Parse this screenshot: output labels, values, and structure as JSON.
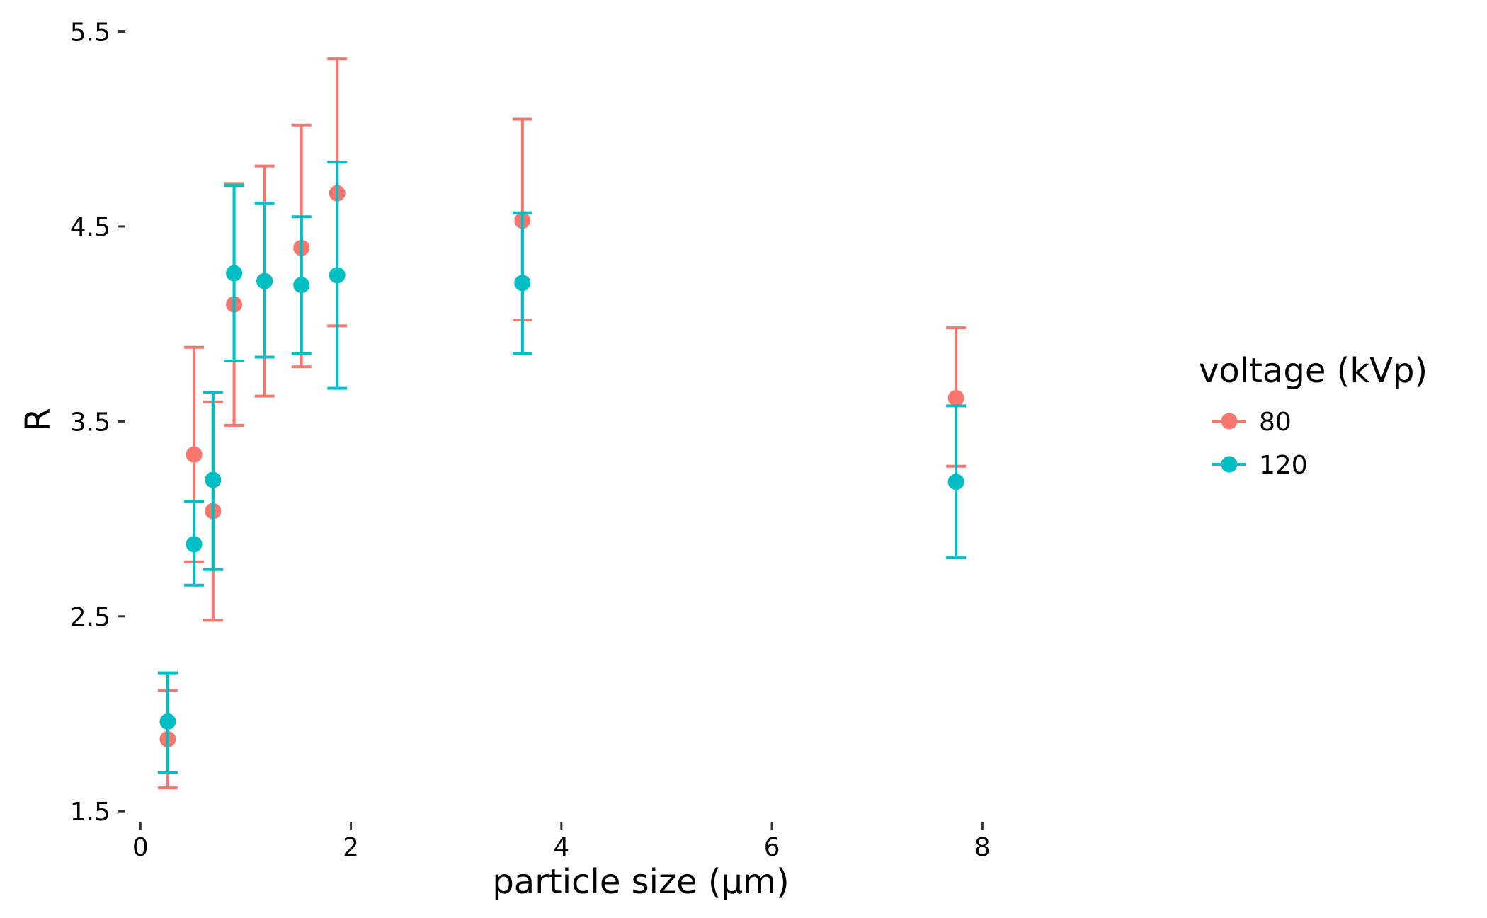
{
  "chart_data": {
    "type": "scatter",
    "xlabel": "particle size (µm)",
    "ylabel": "R",
    "xlim": [
      -0.15,
      9.7
    ],
    "ylim": [
      1.45,
      5.6
    ],
    "x_ticks": [
      0,
      2,
      4,
      6,
      8
    ],
    "x_tick_labels": [
      "0",
      "2",
      "4",
      "6",
      "8"
    ],
    "y_ticks": [
      1.5,
      2.5,
      3.5,
      4.5,
      5.5
    ],
    "y_tick_labels": [
      "1.5",
      "2.5",
      "3.5",
      "4.5",
      "5.5"
    ],
    "grid": false,
    "legend": {
      "title": "voltage (kVp)",
      "position": "right"
    },
    "series": [
      {
        "name": "80",
        "color": "#F8766D",
        "points": [
          {
            "x": 0.26,
            "y": 1.87,
            "ymin": 1.62,
            "ymax": 2.12
          },
          {
            "x": 0.51,
            "y": 3.33,
            "ymin": 2.78,
            "ymax": 3.88
          },
          {
            "x": 0.69,
            "y": 3.04,
            "ymin": 2.48,
            "ymax": 3.6
          },
          {
            "x": 0.89,
            "y": 4.1,
            "ymin": 3.48,
            "ymax": 4.72
          },
          {
            "x": 1.18,
            "y": 4.22,
            "ymin": 3.63,
            "ymax": 4.81
          },
          {
            "x": 1.53,
            "y": 4.39,
            "ymin": 3.78,
            "ymax": 5.02
          },
          {
            "x": 1.87,
            "y": 4.67,
            "ymin": 3.99,
            "ymax": 5.36
          },
          {
            "x": 3.63,
            "y": 4.53,
            "ymin": 4.02,
            "ymax": 5.05
          },
          {
            "x": 7.75,
            "y": 3.62,
            "ymin": 3.27,
            "ymax": 3.98
          }
        ]
      },
      {
        "name": "120",
        "color": "#00BFC4",
        "points": [
          {
            "x": 0.26,
            "y": 1.96,
            "ymin": 1.7,
            "ymax": 2.21
          },
          {
            "x": 0.51,
            "y": 2.87,
            "ymin": 2.66,
            "ymax": 3.09
          },
          {
            "x": 0.69,
            "y": 3.2,
            "ymin": 2.74,
            "ymax": 3.65
          },
          {
            "x": 0.89,
            "y": 4.26,
            "ymin": 3.81,
            "ymax": 4.71
          },
          {
            "x": 1.18,
            "y": 4.22,
            "ymin": 3.83,
            "ymax": 4.62
          },
          {
            "x": 1.53,
            "y": 4.2,
            "ymin": 3.85,
            "ymax": 4.55
          },
          {
            "x": 1.87,
            "y": 4.25,
            "ymin": 3.67,
            "ymax": 4.83
          },
          {
            "x": 3.63,
            "y": 4.21,
            "ymin": 3.85,
            "ymax": 4.57
          },
          {
            "x": 7.75,
            "y": 3.19,
            "ymin": 2.8,
            "ymax": 3.58
          }
        ]
      }
    ]
  }
}
